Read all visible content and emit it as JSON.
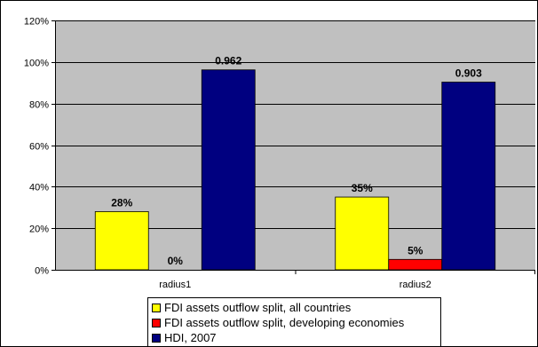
{
  "chart_data": {
    "type": "bar",
    "title": "",
    "xlabel": "",
    "ylabel": "",
    "ylim": [
      0,
      1.2
    ],
    "yticks": [
      0,
      0.2,
      0.4,
      0.6,
      0.8,
      1.0,
      1.2
    ],
    "ytick_labels": [
      "0%",
      "20%",
      "40%",
      "60%",
      "80%",
      "100%",
      "120%"
    ],
    "grid": true,
    "legend_position": "bottom",
    "plot_background": "#c0c0c0",
    "categories": [
      "radius1",
      "radius2"
    ],
    "series": [
      {
        "name": "FDI assets outflow split, all countries",
        "color": "#ffff00",
        "values": [
          0.28,
          0.35
        ],
        "labels": [
          "28%",
          "35%"
        ]
      },
      {
        "name": "FDI assets outflow split, developing economies",
        "color": "#ff0000",
        "values": [
          0.0,
          0.05
        ],
        "labels": [
          "0%",
          "5%"
        ]
      },
      {
        "name": "HDI, 2007",
        "color": "#000080",
        "values": [
          0.962,
          0.903
        ],
        "labels": [
          "0.962",
          "0.903"
        ]
      }
    ]
  }
}
